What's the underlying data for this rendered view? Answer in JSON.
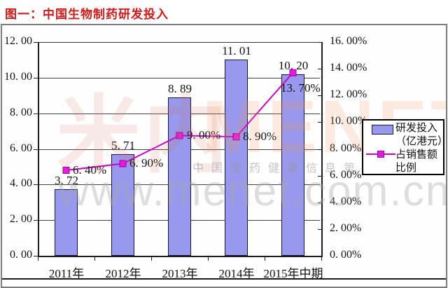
{
  "page_title": "图一：中国生物制药研发投入",
  "watermark": {
    "logo_cn": "米内",
    "logo_en": "MENET",
    "tagline": "中国医药健康信息第一平台",
    "url": "www.menet.com.cn"
  },
  "legend": {
    "item1_line1": "研发投入",
    "item1_line2": "（亿港元）",
    "item2_line1": "占销售额",
    "item2_line2": "比例"
  },
  "colors": {
    "title_red": "#cb1b1b",
    "bar_fill": "#9898EC",
    "bar_border": "#16163a",
    "line_magenta": "#CC00CC",
    "marker_magenta": "#E419E4",
    "frame_gray": "#7e7e7e"
  },
  "chart_data": {
    "type": "combo-bar-line",
    "title": "图一：中国生物制药研发投入",
    "categories": [
      "2011年",
      "2012年",
      "2013年",
      "2014年",
      "2015年中期"
    ],
    "series": [
      {
        "name": "研发投入（亿港元）",
        "chart": "bar",
        "axis": "left",
        "values": [
          3.72,
          5.71,
          8.89,
          11.01,
          10.2
        ],
        "data_labels": [
          "3. 72",
          "5. 71",
          "8. 89",
          "11. 01",
          "10. 20"
        ],
        "color": "#9898EC"
      },
      {
        "name": "占销售额比例",
        "chart": "line",
        "axis": "right",
        "values": [
          6.4,
          6.9,
          9.0,
          8.9,
          13.7
        ],
        "data_labels": [
          "6. 40%",
          "6. 90%",
          "9. 00%",
          "8. 90%",
          "13. 70%"
        ],
        "color": "#CC00CC",
        "marker_color": "#E419E4"
      }
    ],
    "left_axis": {
      "min": 0,
      "max": 12,
      "step": 2,
      "tick_labels": [
        "0. 00",
        "2. 00",
        "4. 00",
        "6. 00",
        "8. 00",
        "10. 00",
        "12. 00"
      ]
    },
    "right_axis": {
      "min": 0,
      "max": 16,
      "step": 2,
      "tick_labels": [
        "0. 00%",
        "2. 00%",
        "4. 00%",
        "6. 00%",
        "8. 00%",
        "10. 00%",
        "12. 00%",
        "14. 00%",
        "16. 00%"
      ]
    },
    "grid": true,
    "legend_position": "middle-right"
  }
}
